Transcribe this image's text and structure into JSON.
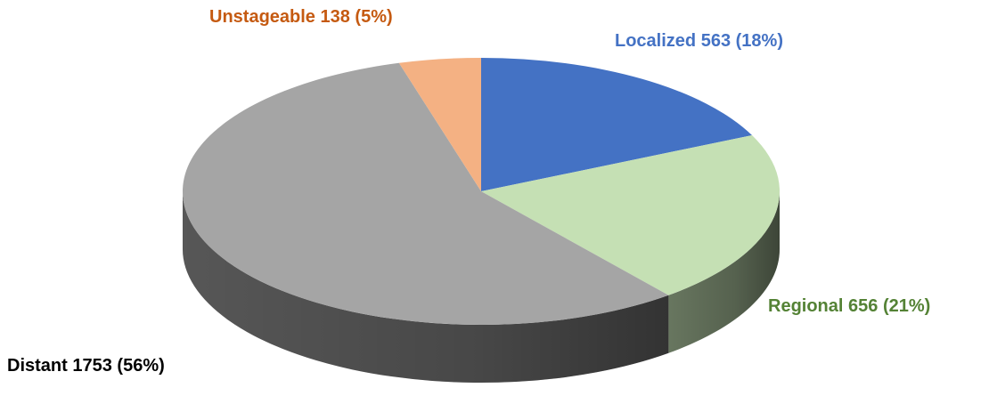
{
  "chart_data": {
    "type": "pie",
    "categories": [
      "Localized",
      "Regional",
      "Distant",
      "Unstageable"
    ],
    "values": [
      563,
      656,
      1753,
      138
    ],
    "value_labels": [
      "563 (18%)",
      "656 (21%)",
      "1753 (56%)",
      "138 (5%)"
    ],
    "colors": [
      "#4472c4",
      "#c5e0b4",
      "#a5a5a5",
      "#f4b183"
    ],
    "label_colors": [
      "#4472c4",
      "#548235",
      "#000000",
      "#c55a11"
    ]
  }
}
